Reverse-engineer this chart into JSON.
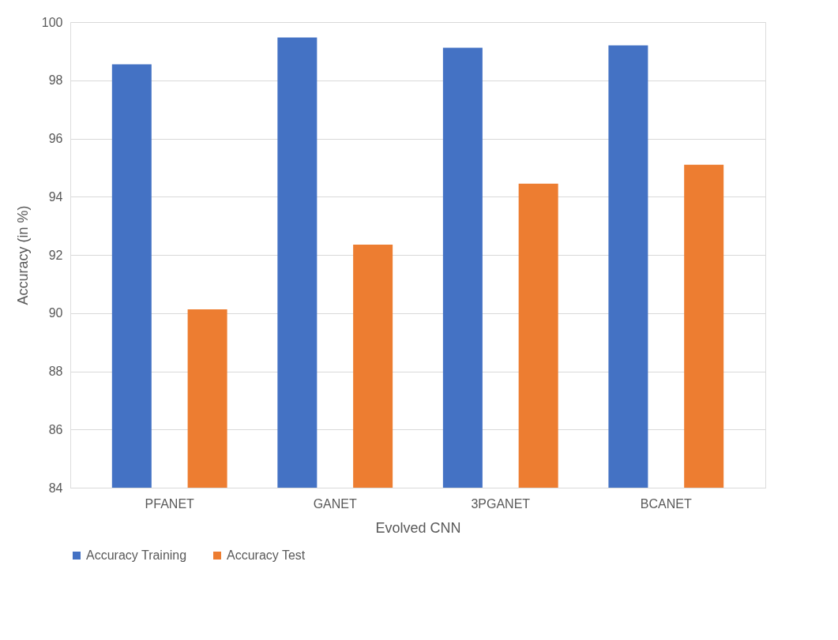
{
  "chart_data": {
    "type": "bar",
    "xlabel": "Evolved CNN",
    "ylabel": "Accuracy (in %)",
    "categories": [
      "PFANET",
      "GANET",
      "3PGANET",
      "BCANET"
    ],
    "series": [
      {
        "name": "Accuracy Training",
        "color": "#4472c4",
        "values": [
          98.55,
          99.47,
          99.12,
          99.2
        ]
      },
      {
        "name": "Accuracy Test",
        "color": "#ed7d31",
        "values": [
          90.13,
          92.35,
          94.45,
          95.1
        ]
      }
    ],
    "ylim": [
      84,
      100
    ],
    "yticks": [
      84,
      86,
      88,
      90,
      92,
      94,
      96,
      98,
      100
    ],
    "grid": "y",
    "legend": "bottom"
  }
}
